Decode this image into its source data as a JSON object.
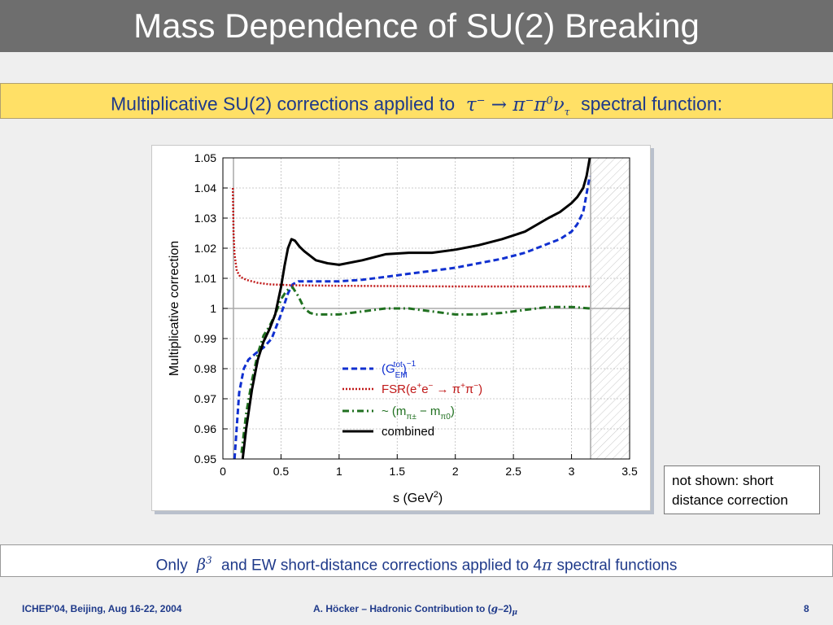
{
  "slide": {
    "title": "Mass Dependence of SU(2) Breaking",
    "subtitle_prefix": "Multiplicative SU(2) corrections applied to",
    "subtitle_suffix": "spectral function:",
    "note": "not shown: short distance correction",
    "bottom_prefix": "Only",
    "bottom_middle": "and EW short-distance corrections applied to 4",
    "bottom_suffix": "spectral functions",
    "footer_left": "ICHEP'04, Beijing, Aug 16-22, 2004",
    "footer_center_prefix": "A. Höcker – Hadronic Contribution to (",
    "footer_page": "8"
  },
  "colors": {
    "title_bg": "#6e6e6e",
    "subtitle_bg": "#ffe066",
    "text_blue": "#1f3a8a",
    "g_tot": "#1030d0",
    "fsr": "#c01818",
    "mass_diff": "#207020",
    "combined": "#000000"
  },
  "chart_data": {
    "type": "line",
    "xlabel": "s (GeV²)",
    "ylabel": "Multiplicative correction",
    "xlim": [
      0,
      3.5
    ],
    "ylim": [
      0.95,
      1.05
    ],
    "x_ticks": [
      "0",
      "0.5",
      "1",
      "1.5",
      "2",
      "2.5",
      "3",
      "3.5"
    ],
    "y_ticks": [
      "0.95",
      "0.96",
      "0.97",
      "0.98",
      "0.99",
      "1",
      "1.01",
      "1.02",
      "1.03",
      "1.04",
      "1.05"
    ],
    "grid": true,
    "reference_line": 1.0,
    "excluded_region": [
      3.157,
      3.5
    ],
    "legend_position": "lower-right",
    "series": [
      {
        "name": "(G_EM^tot)^-1",
        "style": "dashed",
        "x": [
          0.1,
          0.14,
          0.18,
          0.22,
          0.28,
          0.35,
          0.42,
          0.5,
          0.56,
          0.6,
          0.65,
          0.7,
          0.8,
          1.0,
          1.2,
          1.4,
          1.6,
          1.8,
          2.0,
          2.2,
          2.4,
          2.6,
          2.8,
          2.9,
          3.0,
          3.05,
          3.1,
          3.12,
          3.157
        ],
        "y": [
          0.95,
          0.972,
          0.98,
          0.983,
          0.985,
          0.987,
          0.99,
          0.998,
          1.005,
          1.008,
          1.009,
          1.009,
          1.009,
          1.009,
          1.0095,
          1.0105,
          1.0115,
          1.0125,
          1.0135,
          1.015,
          1.0165,
          1.0185,
          1.0215,
          1.023,
          1.0255,
          1.028,
          1.032,
          1.036,
          1.044
        ]
      },
      {
        "name": "FSR(e+e- → π+π-)",
        "style": "dotted",
        "x": [
          0.0855,
          0.088,
          0.092,
          0.1,
          0.12,
          0.15,
          0.2,
          0.3,
          0.4,
          0.6,
          1.0,
          1.5,
          2.0,
          2.5,
          3.0,
          3.157
        ],
        "y": [
          1.04,
          1.034,
          1.025,
          1.018,
          1.0125,
          1.0105,
          1.0095,
          1.0085,
          1.008,
          1.0077,
          1.0075,
          1.0074,
          1.0073,
          1.0073,
          1.0073,
          1.0073
        ]
      },
      {
        "name": "~(m_π± − m_π0)",
        "style": "dash-dot",
        "x": [
          0.16,
          0.2,
          0.25,
          0.3,
          0.35,
          0.4,
          0.45,
          0.5,
          0.55,
          0.6,
          0.65,
          0.7,
          0.75,
          0.8,
          0.9,
          1.0,
          1.2,
          1.4,
          1.6,
          1.8,
          2.0,
          2.2,
          2.4,
          2.6,
          2.8,
          3.0,
          3.157
        ],
        "y": [
          0.952,
          0.965,
          0.976,
          0.985,
          0.991,
          0.994,
          0.998,
          1.003,
          1.006,
          1.007,
          1.004,
          1.0,
          0.9985,
          0.998,
          0.998,
          0.998,
          0.999,
          1.0,
          1.0,
          0.999,
          0.998,
          0.998,
          0.9985,
          0.9995,
          1.0005,
          1.0005,
          1.0
        ]
      },
      {
        "name": "combined",
        "style": "solid",
        "x": [
          0.17,
          0.2,
          0.25,
          0.3,
          0.35,
          0.4,
          0.45,
          0.5,
          0.53,
          0.56,
          0.59,
          0.62,
          0.66,
          0.7,
          0.8,
          0.9,
          1.0,
          1.2,
          1.4,
          1.6,
          1.8,
          2.0,
          2.2,
          2.4,
          2.6,
          2.8,
          2.9,
          3.0,
          3.05,
          3.1,
          3.13,
          3.157
        ],
        "y": [
          0.95,
          0.96,
          0.973,
          0.983,
          0.989,
          0.993,
          0.998,
          1.007,
          1.014,
          1.02,
          1.023,
          1.0225,
          1.0205,
          1.019,
          1.016,
          1.015,
          1.0145,
          1.016,
          1.018,
          1.0185,
          1.0185,
          1.0195,
          1.021,
          1.023,
          1.0255,
          1.03,
          1.032,
          1.035,
          1.037,
          1.04,
          1.044,
          1.05
        ]
      }
    ]
  }
}
